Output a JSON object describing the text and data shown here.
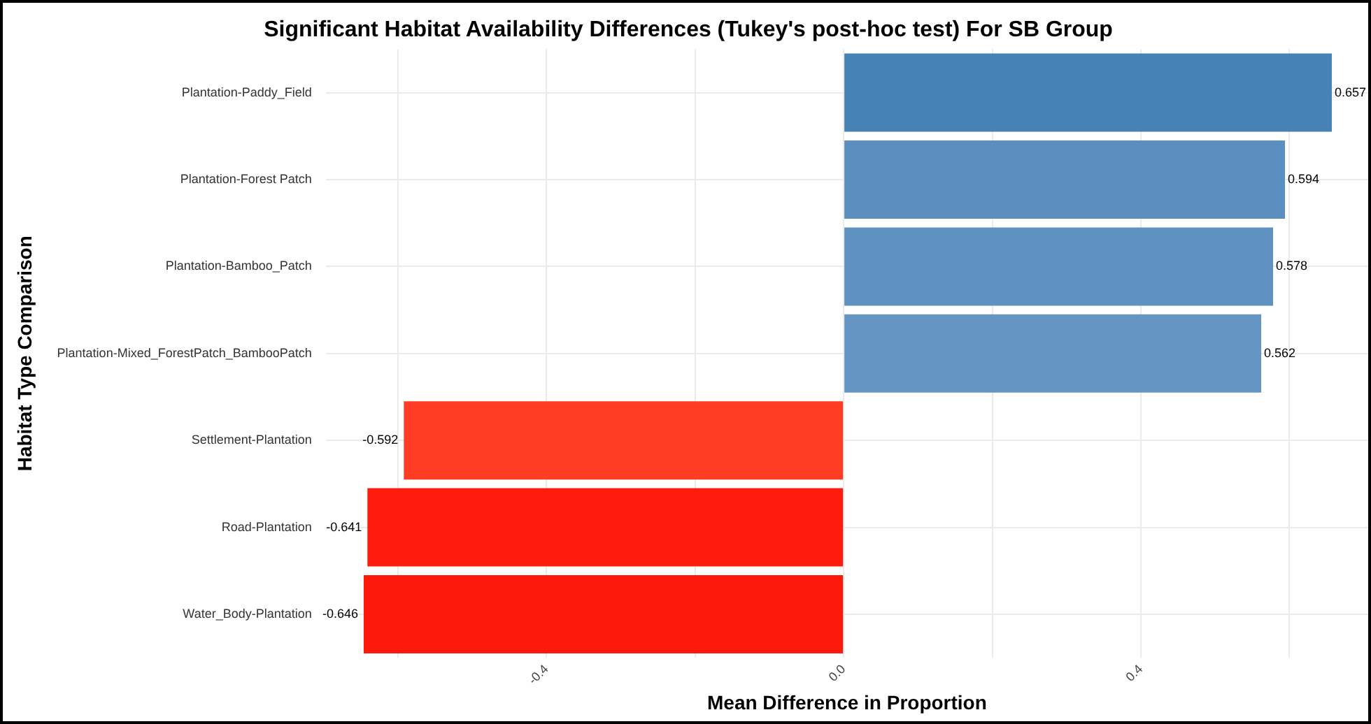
{
  "chart_data": {
    "type": "bar",
    "orientation": "horizontal",
    "title": "Significant Habitat Availability Differences (Tukey's post-hoc test) For SB Group",
    "xlabel": "Mean Difference in Proportion",
    "ylabel": "Habitat Type Comparison",
    "categories": [
      "Plantation-Paddy_Field",
      "Plantation-Forest Patch",
      "Plantation-Bamboo_Patch",
      "Plantation-Mixed_ForestPatch_BambooPatch",
      "Settlement-Plantation",
      "Road-Plantation",
      "Water_Body-Plantation"
    ],
    "values": [
      0.657,
      0.594,
      0.578,
      0.562,
      -0.592,
      -0.641,
      -0.646
    ],
    "colors": [
      "#4682b4",
      "#5a8fbf",
      "#5f92c1",
      "#6596c3",
      "#ff3c24",
      "#ff1c0c",
      "#ff190a"
    ],
    "xlim": [
      -0.697,
      0.706
    ],
    "xticks": [
      {
        "value": -0.6,
        "label": null
      },
      {
        "value": -0.4,
        "label": "-0.4"
      },
      {
        "value": -0.2,
        "label": null
      },
      {
        "value": 0,
        "label": "0.0"
      },
      {
        "value": 0.2,
        "label": null
      },
      {
        "value": 0.4,
        "label": "0.4"
      },
      {
        "value": 0.6,
        "label": null
      }
    ],
    "grid": true,
    "data_labels": true
  }
}
